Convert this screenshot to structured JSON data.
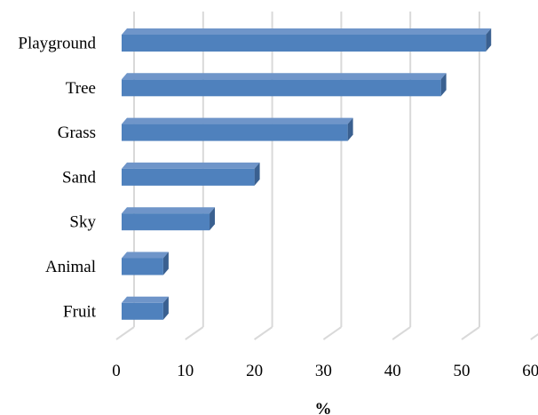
{
  "chart_data": {
    "type": "bar",
    "orientation": "horizontal",
    "style": "3d",
    "categories": [
      "Playground",
      "Tree",
      "Grass",
      "Sand",
      "Sky",
      "Animal",
      "Fruit"
    ],
    "values": [
      53.5,
      47,
      33.5,
      20,
      13.5,
      6.8,
      6.8
    ],
    "xlabel": "%",
    "xlim": [
      0,
      60
    ],
    "xticks": [
      0,
      10,
      20,
      30,
      40,
      50,
      60
    ],
    "grid": true,
    "colors": {
      "bar_front": "#4f81bd",
      "bar_top": "#6f95c9",
      "bar_side": "#3a6090",
      "gridline": "#d9d9d9"
    }
  }
}
